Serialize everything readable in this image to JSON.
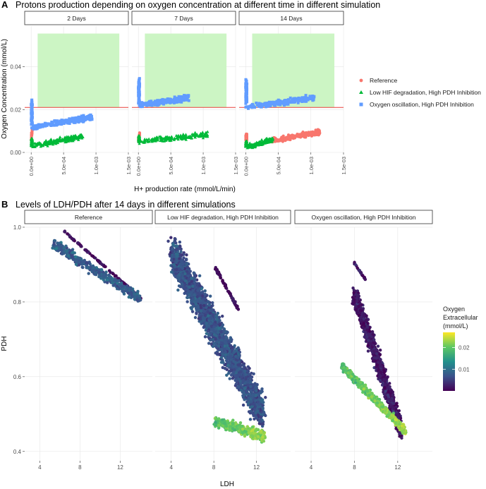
{
  "figure": {
    "colors": {
      "panel_bg": "#ffffff",
      "grid": "#e6e6e6",
      "strip_bg": "#ffffff",
      "strip_border": "#333333",
      "hypoxia_band": "#ccf5c4",
      "threshold_line": "#e8413c",
      "axis_text": "#4d4d4d"
    }
  },
  "chart_data": [
    {
      "panel_tag": "A",
      "type": "scatter",
      "title": "Protons production depending on oxygen concentration at different time in different simulation",
      "xlabel": "H+ production rate (mmol/L/min)",
      "ylabel": "Oxygen Concentration (mmol/L)",
      "xlim": [
        -0.0001,
        0.0015
      ],
      "ylim": [
        0,
        0.057
      ],
      "x_ticks": [
        0,
        0.0005,
        0.001,
        0.0015
      ],
      "x_tick_labels": [
        "0.0e+00",
        "5.0e-04",
        "1.0e-03",
        "1.5e-03"
      ],
      "y_ticks": [
        0,
        0.02,
        0.04
      ],
      "y_tick_labels": [
        "0.00",
        "0.02",
        "0.04"
      ],
      "threshold_y": 0.021,
      "band": {
        "x": [
          0.0001,
          0.00136
        ],
        "y": [
          0.021,
          0.0555
        ]
      },
      "facets": [
        "2 Days",
        "7 Days",
        "14 Days"
      ],
      "legend_position": "right",
      "series": [
        {
          "name": "Reference",
          "color": "#f8766d",
          "shape": "circle",
          "trend": [
            {
              "x0": 0.0,
              "x1": 2e-05,
              "y0": 0.006,
              "y1": 0.011
            },
            {
              "x0": 0.0,
              "x1": 2e-05,
              "y0": 0.005,
              "y1": 0.009
            },
            {
              "x0": 0.0004,
              "x1": 0.00114,
              "y0": 0.0055,
              "y1": 0.0095
            }
          ]
        },
        {
          "name": "Low HIF degradation, High PDH Inhibition",
          "color": "#00ba38",
          "shape": "triangle",
          "trend": [
            {
              "x0": 0.0,
              "x1": 0.0008,
              "y0": 0.003,
              "y1": 0.0075
            },
            {
              "x0": 0.0,
              "x1": 0.00107,
              "y0": 0.005,
              "y1": 0.0085
            },
            {
              "x0": 0.0,
              "x1": 0.00042,
              "y0": 0.0025,
              "y1": 0.006
            }
          ]
        },
        {
          "name": "Oxygen oscillation, High PDH Inhibition",
          "color": "#619cff",
          "shape": "square",
          "trend": [
            {
              "x0": 0.0,
              "x1": 0.00094,
              "y0": 0.0115,
              "y1": 0.0165
            },
            {
              "x0": 0.0,
              "x1": 0.00078,
              "y0": 0.022,
              "y1": 0.0255
            },
            {
              "x0": 0.0,
              "x1": 0.00105,
              "y0": 0.021,
              "y1": 0.0255
            }
          ]
        }
      ]
    },
    {
      "panel_tag": "B",
      "type": "scatter",
      "title": "Levels of LDH/PDH after 14 days in different simulations",
      "xlabel": "LDH",
      "ylabel": "PDH",
      "xlim": [
        2.5,
        15.2
      ],
      "ylim": [
        0.375,
        1.0
      ],
      "x_ticks": [
        4,
        8,
        12
      ],
      "x_tick_labels": [
        "4",
        "8",
        "12"
      ],
      "y_ticks": [
        0.4,
        0.6,
        0.8,
        1.0
      ],
      "y_tick_labels": [
        "0.4",
        "0.6",
        "0.8",
        "1.0"
      ],
      "facets": [
        "Reference",
        "Low HIF degradation, High PDH Inhibition",
        "Oxygen oscillation, High PDH Inhibition"
      ],
      "colorbar": {
        "title": "Oxygen\nExtracellular\n(mmol/L)",
        "min": 0.0,
        "max": 0.027,
        "ticks": [
          0.01,
          0.02
        ],
        "tick_labels": [
          "0.01",
          "0.02"
        ],
        "palette": [
          "#440154",
          "#3b528b",
          "#21908c",
          "#5dc863",
          "#fde725"
        ]
      },
      "clusters": [
        [
          {
            "x0": 6.3,
            "x1": 14.2,
            "y0": 0.992,
            "y1": 0.807,
            "oxygen": 0.001,
            "n": 110,
            "spread": 0.003
          },
          {
            "x0": 5.3,
            "x1": 14.0,
            "y0": 0.955,
            "y1": 0.81,
            "oxygen": 0.008,
            "n": 420,
            "spread": 0.02
          }
        ],
        [
          {
            "x0": 4.1,
            "x1": 12.6,
            "y0": 0.93,
            "y1": 0.5,
            "oxygen": 0.007,
            "n": 2300,
            "spread": 0.07
          },
          {
            "x0": 8.0,
            "x1": 10.3,
            "y0": 0.9,
            "y1": 0.78,
            "oxygen": 0.001,
            "n": 90,
            "spread": 0.006
          },
          {
            "x0": 8.1,
            "x1": 12.8,
            "y0": 0.48,
            "y1": 0.44,
            "oxygen": 0.019,
            "n": 380,
            "spread": 0.02
          }
        ],
        [
          {
            "x0": 8.0,
            "x1": 12.3,
            "y0": 0.82,
            "y1": 0.46,
            "oxygen": 0.002,
            "n": 1200,
            "spread": 0.04
          },
          {
            "x0": 6.8,
            "x1": 12.7,
            "y0": 0.63,
            "y1": 0.455,
            "oxygen": 0.019,
            "n": 650,
            "spread": 0.015
          },
          {
            "x0": 8.0,
            "x1": 9.0,
            "y0": 0.905,
            "y1": 0.86,
            "oxygen": 0.002,
            "n": 30,
            "spread": 0.004
          }
        ]
      ]
    }
  ]
}
